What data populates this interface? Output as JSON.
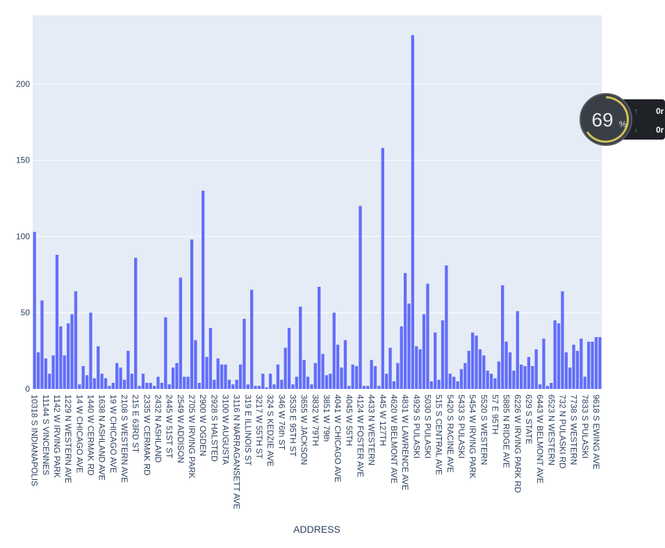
{
  "chart_data": {
    "type": "bar",
    "x_label": "ADDRESS",
    "color": "#636efa",
    "grid": true,
    "ylim": [
      0,
      245
    ],
    "yticks": [
      0,
      50,
      100,
      150,
      200
    ],
    "categories": [
      "10318 S INDIANAPOLIS",
      null,
      null,
      "11144 S VINCENNES",
      null,
      null,
      "1142 W IRVING PARK",
      null,
      null,
      "1229 N WESTERN AVE",
      null,
      null,
      "14 W CHICAGO AVE",
      null,
      null,
      "1440 W CERMAK RD",
      null,
      null,
      "1638 N ASHLAND AVE",
      null,
      null,
      "19 W CHICAGO AVE",
      null,
      null,
      "2108 S WESTERN AVE",
      null,
      null,
      "215 E 63RD ST",
      null,
      null,
      "2335 W CERMAK RD",
      null,
      null,
      "2432 N ASHLAND",
      null,
      null,
      "2445 W 51ST ST",
      null,
      null,
      "2549 W ADDISON",
      null,
      null,
      "2705 W IRVING PARK",
      null,
      null,
      "2900 W OGDEN",
      null,
      null,
      "2928 S HALSTED",
      null,
      null,
      "3100 W AUGUSTA",
      null,
      null,
      "3116 N NARRAGANSETT AVE",
      null,
      null,
      "319 E ILLINOIS ST",
      null,
      null,
      "3217 W 55TH ST",
      null,
      null,
      "324 S KEDZIE AVE",
      null,
      null,
      "346 W 76th ST",
      null,
      null,
      "3535 E 95TH ST",
      null,
      null,
      "3655 W JACKSON",
      null,
      null,
      "3832 W 79TH",
      null,
      null,
      "3851 W 79th",
      null,
      null,
      "4041 W CHICAGO AVE",
      null,
      null,
      "4045 W 55TH",
      null,
      null,
      "4124 W FOSTER AVE",
      null,
      null,
      "4433 N WESTERN",
      null,
      null,
      "445 W 127TH",
      null,
      null,
      "4620 W BELMONT AVE",
      null,
      null,
      "4831 W LAWRENCE AVE",
      null,
      null,
      "4929 S PULASKI",
      null,
      null,
      "5030 S PULASKI",
      null,
      null,
      "515 S CENTRAL AVE",
      null,
      null,
      "5420 S RACINE AVE",
      null,
      null,
      "5433 S PULASKI",
      null,
      null,
      "5454 W IRVING PARK",
      null,
      null,
      "5520 S WESTERN",
      null,
      null,
      "57 E 95TH",
      null,
      null,
      "5885 N RIDGE AVE",
      null,
      null,
      "6226 W IRVING PARK RD",
      null,
      null,
      "629 S STATE",
      null,
      null,
      "6443 W BELMONT AVE",
      null,
      null,
      "6523 N WESTERN",
      null,
      null,
      "732 N PULASKI RD",
      null,
      null,
      "7738 S WESTERN",
      null,
      null,
      "7833 S PULASKI",
      null,
      null,
      "9618 S EWING AVE",
      null
    ],
    "values": [
      103,
      24,
      58,
      20,
      10,
      22,
      88,
      41,
      22,
      43,
      49,
      64,
      3,
      15,
      9,
      50,
      7,
      28,
      10,
      7,
      2,
      4,
      17,
      14,
      6,
      25,
      10,
      86,
      2,
      10,
      4,
      4,
      2,
      8,
      4,
      47,
      3,
      14,
      17,
      73,
      8,
      8,
      98,
      32,
      4,
      130,
      21,
      40,
      6,
      20,
      16,
      16,
      6,
      3,
      6,
      16,
      46,
      3,
      65,
      2,
      2,
      10,
      1,
      10,
      3,
      16,
      6,
      27,
      40,
      3,
      8,
      54,
      19,
      8,
      3,
      17,
      67,
      23,
      9,
      10,
      50,
      29,
      14,
      32,
      2,
      16,
      15,
      120,
      2,
      2,
      19,
      15,
      2,
      158,
      10,
      27,
      5,
      17,
      41,
      76,
      56,
      232,
      28,
      26,
      49,
      69,
      5,
      37,
      6,
      45,
      81,
      10,
      8,
      5,
      13,
      17,
      25,
      37,
      35,
      26,
      22,
      12,
      10,
      7,
      18,
      68,
      31,
      24,
      12,
      51,
      16,
      15,
      21,
      15,
      26,
      3,
      33,
      2,
      4,
      45,
      43,
      64,
      24,
      14,
      29,
      25,
      33,
      8,
      31,
      31,
      34,
      34
    ]
  },
  "overlay": {
    "percent": "69",
    "unit": "%",
    "rows": [
      "0r",
      "0r"
    ]
  }
}
